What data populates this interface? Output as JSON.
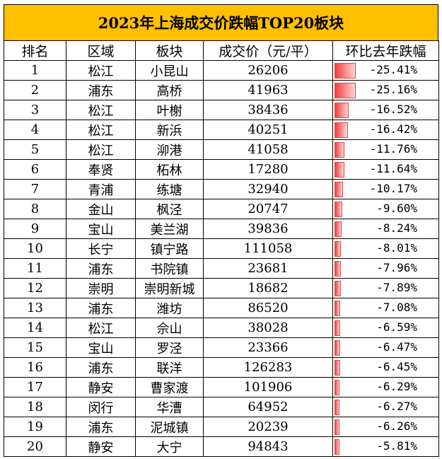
{
  "title": "2023年上海成交价跌幅TOP20板块",
  "headers": [
    "排名",
    "区域",
    "板块",
    "成交价（元/平）",
    "环比去年跌幅"
  ],
  "rows": [
    {
      "rank": "1",
      "district": "松江",
      "block": "小昆山",
      "price": "26206",
      "change": "-25.41%",
      "pct": 25.41
    },
    {
      "rank": "2",
      "district": "浦东",
      "block": "高桥",
      "price": "41963",
      "change": "-25.16%",
      "pct": 25.16
    },
    {
      "rank": "3",
      "district": "松江",
      "block": "叶榭",
      "price": "38436",
      "change": "-16.52%",
      "pct": 16.52
    },
    {
      "rank": "4",
      "district": "松江",
      "block": "新浜",
      "price": "40251",
      "change": "-16.42%",
      "pct": 16.42
    },
    {
      "rank": "5",
      "district": "松江",
      "block": "泖港",
      "price": "41058",
      "change": "-11.76%",
      "pct": 11.76
    },
    {
      "rank": "6",
      "district": "奉贤",
      "block": "柘林",
      "price": "17280",
      "change": "-11.64%",
      "pct": 11.64
    },
    {
      "rank": "7",
      "district": "青浦",
      "block": "练塘",
      "price": "32940",
      "change": "-10.17%",
      "pct": 10.17
    },
    {
      "rank": "8",
      "district": "金山",
      "block": "枫泾",
      "price": "20747",
      "change": "-9.60%",
      "pct": 9.6
    },
    {
      "rank": "9",
      "district": "宝山",
      "block": "美兰湖",
      "price": "39836",
      "change": "-8.24%",
      "pct": 8.24
    },
    {
      "rank": "10",
      "district": "长宁",
      "block": "镇宁路",
      "price": "111058",
      "change": "-8.01%",
      "pct": 8.01
    },
    {
      "rank": "11",
      "district": "浦东",
      "block": "书院镇",
      "price": "23681",
      "change": "-7.96%",
      "pct": 7.96
    },
    {
      "rank": "12",
      "district": "崇明",
      "block": "崇明新城",
      "price": "18682",
      "change": "-7.89%",
      "pct": 7.89
    },
    {
      "rank": "13",
      "district": "浦东",
      "block": "潍坊",
      "price": "86520",
      "change": "-7.08%",
      "pct": 7.08
    },
    {
      "rank": "14",
      "district": "松江",
      "block": "佘山",
      "price": "38028",
      "change": "-6.59%",
      "pct": 6.59
    },
    {
      "rank": "15",
      "district": "宝山",
      "block": "罗泾",
      "price": "23366",
      "change": "-6.47%",
      "pct": 6.47
    },
    {
      "rank": "16",
      "district": "浦东",
      "block": "联洋",
      "price": "126283",
      "change": "-6.45%",
      "pct": 6.45
    },
    {
      "rank": "17",
      "district": "静安",
      "block": "曹家渡",
      "price": "101906",
      "change": "-6.29%",
      "pct": 6.29
    },
    {
      "rank": "18",
      "district": "闵行",
      "block": "华漕",
      "price": "64952",
      "change": "-6.27%",
      "pct": 6.27
    },
    {
      "rank": "19",
      "district": "浦东",
      "block": "泥城镇",
      "price": "20239",
      "change": "-6.26%",
      "pct": 6.26
    },
    {
      "rank": "20",
      "district": "静安",
      "block": "大宁",
      "price": "94843",
      "change": "-5.81%",
      "pct": 5.81
    }
  ],
  "colors": {
    "header_bg": "#ffc000",
    "bar_start": "#f23c3c",
    "bar_end": "#ffd6d6",
    "bar_border": "#e24848"
  }
}
